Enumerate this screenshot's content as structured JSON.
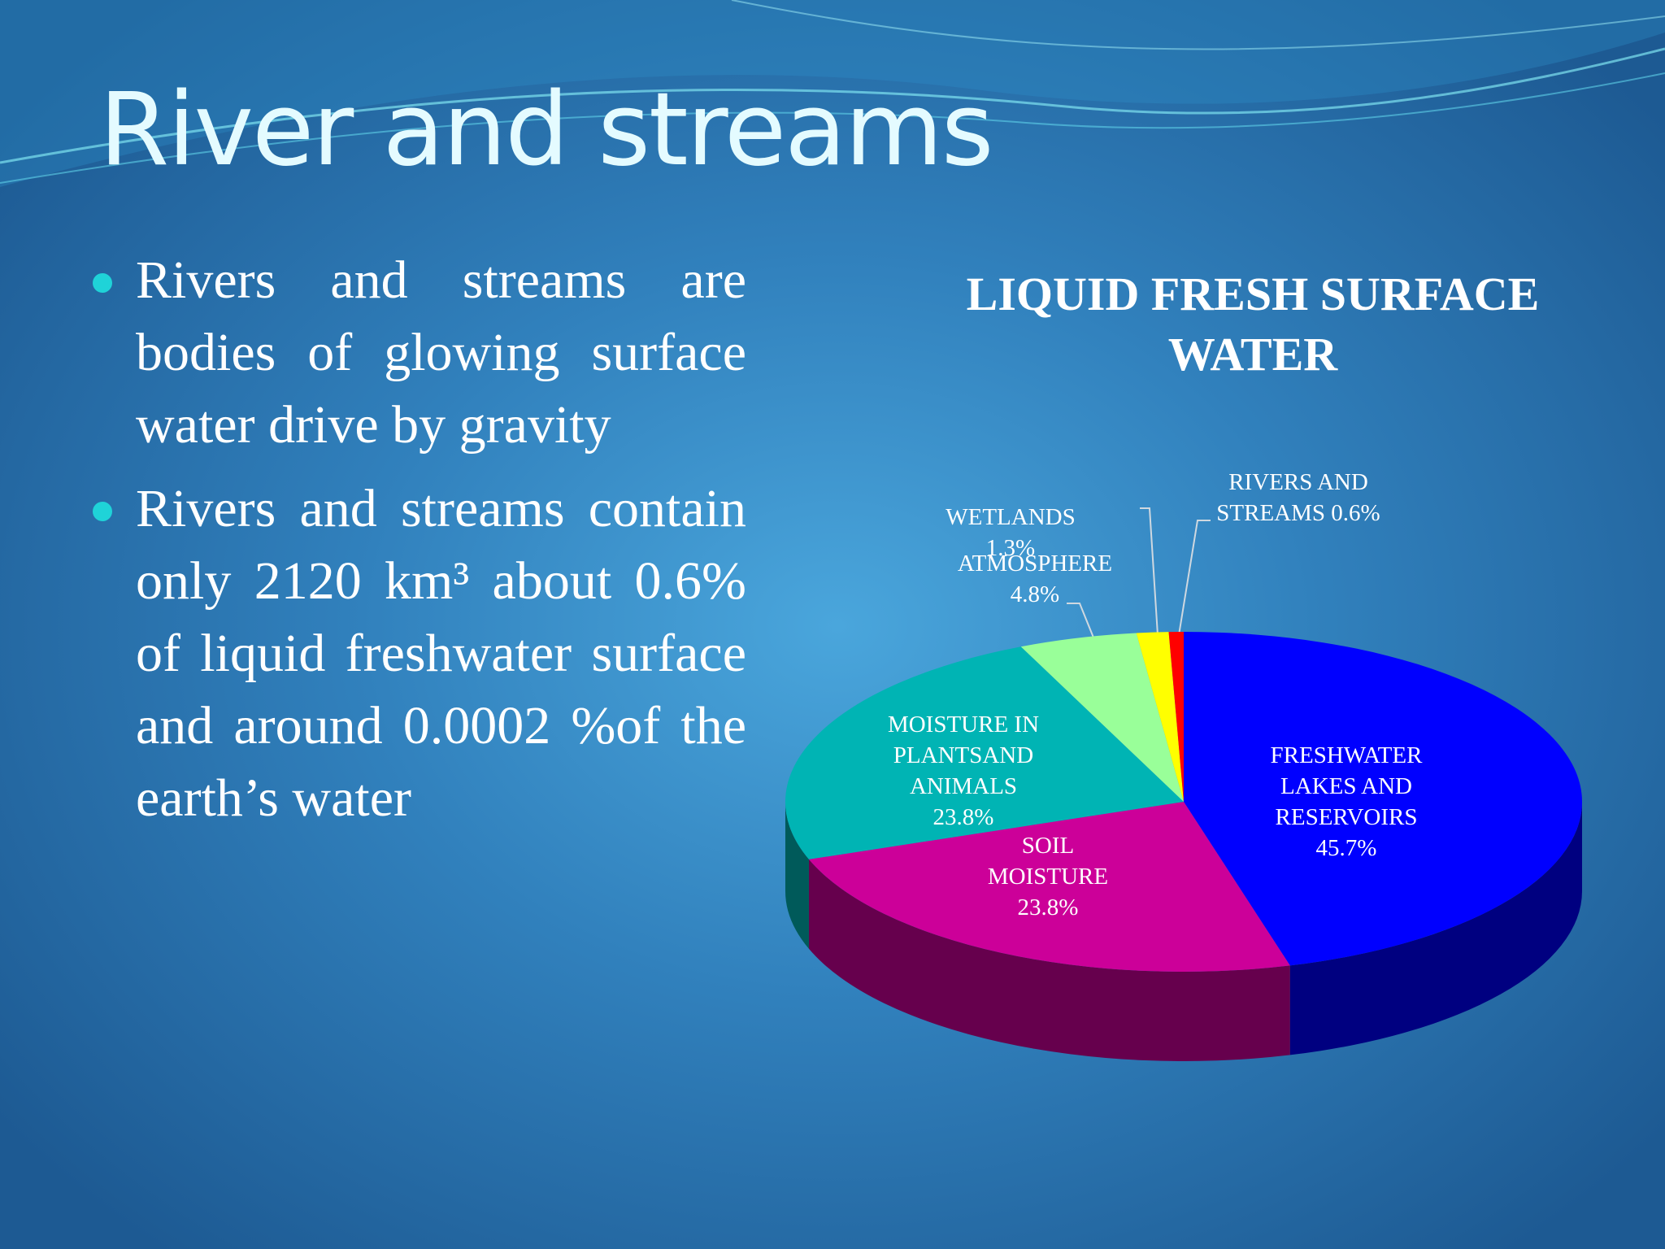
{
  "slide": {
    "title": "River and streams",
    "bullets": [
      "Rivers and streams are bodies of glowing surface water drive by gravity",
      "Rivers and streams contain only 2120 km³ about 0.6% of liquid freshwater surface and around 0.0002 %of the earth’s water"
    ]
  },
  "chart_data": {
    "type": "pie",
    "title": "LIQUID FRESH SURFACE WATER",
    "categories": [
      "FRESHWATER LAKES AND RESERVOIRS",
      "SOIL MOISTURE",
      "MOISTURE IN PLANTSAND ANIMALS",
      "ATMOSPHERE",
      "WETLANDS",
      "RIVERS AND STREAMS"
    ],
    "values": [
      45.7,
      23.8,
      23.8,
      4.8,
      1.3,
      0.6
    ],
    "value_labels": [
      "45.7%",
      "23.8%",
      "23.8%",
      "4.8%",
      "1.3%",
      "0.6%"
    ],
    "colors": [
      "#0000ff",
      "#cc0099",
      "#00b4b4",
      "#99ff99",
      "#ffff00",
      "#ff0000"
    ],
    "three_d": true
  }
}
